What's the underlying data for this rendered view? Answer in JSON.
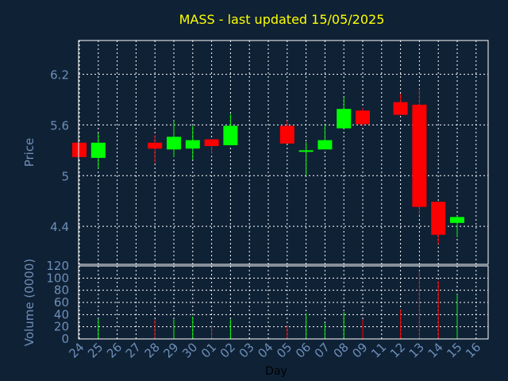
{
  "chart_data": [
    {
      "type": "candlestick",
      "title": "MASS - last updated 15/05/2025",
      "ylabel": "Price",
      "ylim": [
        3.95,
        6.6
      ],
      "yticks": [
        4.4,
        5,
        5.6,
        6.2
      ],
      "ytick_labels": [
        "4.4",
        "5",
        "5.6",
        "6.2"
      ],
      "grid": true,
      "colors": {
        "up": "#00ff00",
        "down": "#ff0000",
        "title": "#ffff00",
        "axis_text": "#6d8fb8",
        "grid": "#ffffff"
      },
      "candles": [
        {
          "day": "24",
          "open": 5.39,
          "high": 5.39,
          "low": 5.22,
          "close": 5.22
        },
        {
          "day": "25",
          "open": 5.21,
          "high": 5.5,
          "low": 5.08,
          "close": 5.39
        },
        {
          "day": "28",
          "open": 5.39,
          "high": 5.48,
          "low": 5.15,
          "close": 5.32
        },
        {
          "day": "29",
          "open": 5.31,
          "high": 5.65,
          "low": 5.22,
          "close": 5.46
        },
        {
          "day": "30",
          "open": 5.32,
          "high": 5.59,
          "low": 5.19,
          "close": 5.42
        },
        {
          "day": "01",
          "open": 5.43,
          "high": 5.43,
          "low": 5.26,
          "close": 5.35
        },
        {
          "day": "02",
          "open": 5.36,
          "high": 5.73,
          "low": 5.36,
          "close": 5.59
        },
        {
          "day": "05",
          "open": 5.59,
          "high": 5.65,
          "low": 5.38,
          "close": 5.38
        },
        {
          "day": "06",
          "open": 5.29,
          "high": 5.4,
          "low": 5.0,
          "close": 5.3
        },
        {
          "day": "07",
          "open": 5.31,
          "high": 5.6,
          "low": 5.31,
          "close": 5.42
        },
        {
          "day": "08",
          "open": 5.56,
          "high": 5.93,
          "low": 5.56,
          "close": 5.79
        },
        {
          "day": "09",
          "open": 5.77,
          "high": 5.8,
          "low": 5.59,
          "close": 5.61
        },
        {
          "day": "12",
          "open": 5.87,
          "high": 5.97,
          "low": 5.72,
          "close": 5.72
        },
        {
          "day": "13",
          "open": 5.84,
          "high": 6.03,
          "low": 4.53,
          "close": 4.63
        },
        {
          "day": "14",
          "open": 4.69,
          "high": 4.69,
          "low": 4.19,
          "close": 4.3
        },
        {
          "day": "15",
          "open": 4.44,
          "high": 4.52,
          "low": 4.27,
          "close": 4.51
        }
      ]
    },
    {
      "type": "bar",
      "xlabel": "Day",
      "ylabel": "Volume (0000)",
      "ylim": [
        0,
        120
      ],
      "yticks": [
        0,
        20,
        40,
        60,
        80,
        100,
        120
      ],
      "ytick_labels": [
        "0",
        "20",
        "40",
        "60",
        "80",
        "100",
        "120"
      ],
      "grid": true,
      "categories": [
        "24",
        "25",
        "26",
        "27",
        "28",
        "29",
        "30",
        "01",
        "02",
        "03",
        "04",
        "05",
        "06",
        "07",
        "08",
        "09",
        "11",
        "12",
        "13",
        "14",
        "15",
        "16"
      ],
      "volumes": [
        {
          "day": "25",
          "value": 33,
          "direction": "up"
        },
        {
          "day": "28",
          "value": 32,
          "direction": "down"
        },
        {
          "day": "29",
          "value": 32,
          "direction": "up"
        },
        {
          "day": "30",
          "value": 37,
          "direction": "up"
        },
        {
          "day": "01",
          "value": 22,
          "direction": "down"
        },
        {
          "day": "02",
          "value": 32,
          "direction": "up"
        },
        {
          "day": "05",
          "value": 22,
          "direction": "down"
        },
        {
          "day": "06",
          "value": 42,
          "direction": "up"
        },
        {
          "day": "07",
          "value": 26,
          "direction": "up"
        },
        {
          "day": "08",
          "value": 44,
          "direction": "up"
        },
        {
          "day": "09",
          "value": 32,
          "direction": "down"
        },
        {
          "day": "12",
          "value": 48,
          "direction": "down"
        },
        {
          "day": "13",
          "value": 112,
          "direction": "down"
        },
        {
          "day": "14",
          "value": 95,
          "direction": "down"
        },
        {
          "day": "15",
          "value": 73,
          "direction": "up"
        }
      ]
    }
  ]
}
